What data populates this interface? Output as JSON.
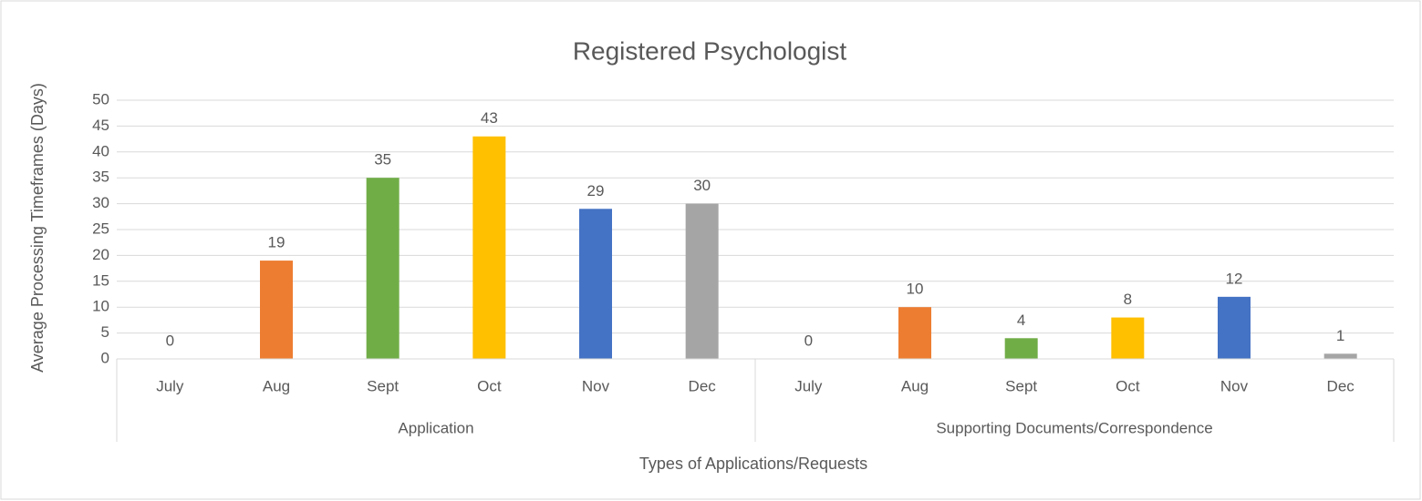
{
  "chart_data": {
    "type": "bar",
    "title": "Registered Psychologist",
    "ylabel": "Average Processing Timeframes (Days)",
    "xlabel": "Types of Applications/Requests",
    "groups": [
      {
        "name": "Application",
        "categories": [
          "July",
          "Aug",
          "Sept",
          "Oct",
          "Nov",
          "Dec"
        ],
        "values": [
          0,
          19,
          35,
          43,
          29,
          30
        ]
      },
      {
        "name": "Supporting Documents/Correspondence",
        "categories": [
          "July",
          "Aug",
          "Sept",
          "Oct",
          "Nov",
          "Dec"
        ],
        "values": [
          0,
          10,
          4,
          8,
          12,
          1
        ]
      }
    ],
    "colors": [
      "#5b9bd5",
      "#ed7d31",
      "#70ad47",
      "#ffc000",
      "#4472c4",
      "#a5a5a5"
    ],
    "ylim": [
      0,
      50
    ],
    "yticks": [
      0,
      5,
      10,
      15,
      20,
      25,
      30,
      35,
      40,
      45,
      50
    ],
    "grid": true
  }
}
